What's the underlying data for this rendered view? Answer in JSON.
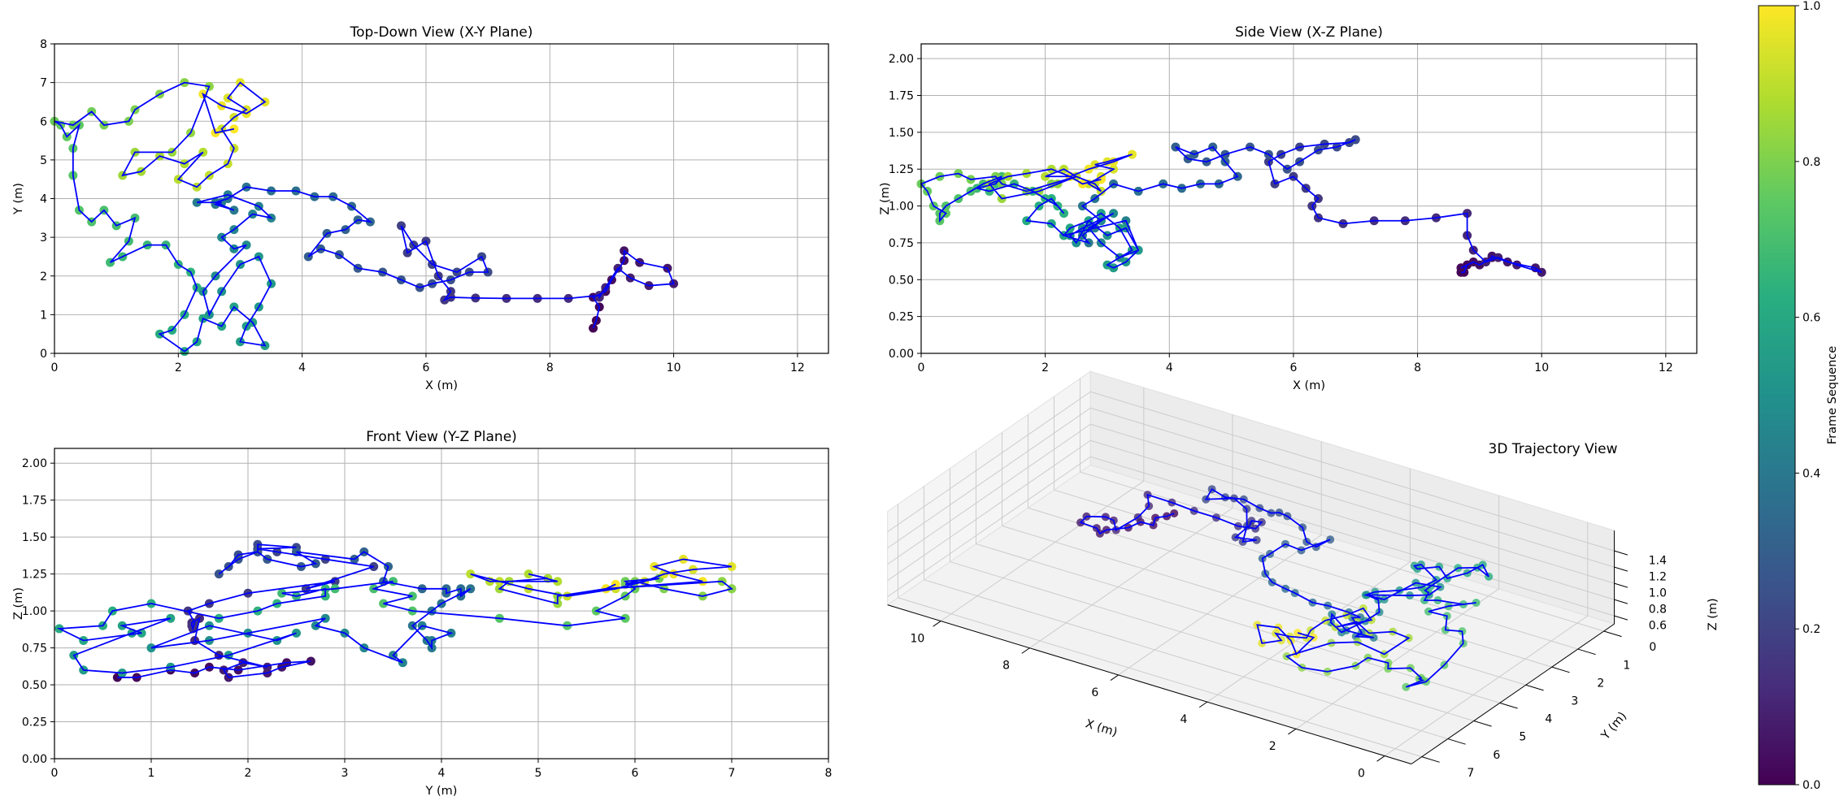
{
  "chart_data": {
    "type": "scatter",
    "trajectory_points_xyz": [
      [
        8.7,
        0.65,
        0.55
      ],
      [
        8.75,
        0.85,
        0.55
      ],
      [
        8.8,
        1.2,
        0.6
      ],
      [
        8.7,
        1.45,
        0.58
      ],
      [
        8.9,
        1.6,
        0.62
      ],
      [
        9.0,
        1.9,
        0.6
      ],
      [
        9.2,
        2.4,
        0.65
      ],
      [
        9.2,
        2.65,
        0.66
      ],
      [
        9.45,
        2.35,
        0.62
      ],
      [
        9.9,
        2.2,
        0.58
      ],
      [
        10.0,
        1.8,
        0.55
      ],
      [
        9.6,
        1.75,
        0.6
      ],
      [
        9.3,
        1.95,
        0.65
      ],
      [
        9.1,
        2.2,
        0.62
      ],
      [
        8.9,
        1.7,
        0.7
      ],
      [
        8.8,
        1.45,
        0.8
      ],
      [
        8.8,
        1.5,
        0.95
      ],
      [
        8.3,
        1.42,
        0.92
      ],
      [
        7.8,
        1.42,
        0.9
      ],
      [
        7.3,
        1.42,
        0.9
      ],
      [
        6.8,
        1.43,
        0.88
      ],
      [
        6.4,
        1.45,
        0.92
      ],
      [
        6.3,
        1.38,
        1.0
      ],
      [
        6.4,
        1.6,
        1.05
      ],
      [
        6.2,
        2.0,
        1.12
      ],
      [
        6.0,
        2.9,
        1.2
      ],
      [
        5.7,
        2.6,
        1.15
      ],
      [
        5.6,
        3.3,
        1.3
      ],
      [
        5.8,
        2.8,
        1.35
      ],
      [
        6.1,
        2.3,
        1.4
      ],
      [
        6.5,
        2.1,
        1.42
      ],
      [
        6.9,
        2.5,
        1.43
      ],
      [
        7.0,
        2.1,
        1.45
      ],
      [
        6.7,
        2.1,
        1.4
      ],
      [
        6.4,
        1.9,
        1.38
      ],
      [
        6.1,
        1.8,
        1.3
      ],
      [
        5.9,
        1.7,
        1.25
      ],
      [
        5.6,
        1.9,
        1.35
      ],
      [
        5.3,
        2.1,
        1.4
      ],
      [
        4.9,
        2.2,
        1.35
      ],
      [
        4.6,
        2.55,
        1.3
      ],
      [
        4.3,
        2.7,
        1.32
      ],
      [
        4.1,
        2.5,
        1.4
      ],
      [
        4.4,
        3.1,
        1.35
      ],
      [
        4.7,
        3.2,
        1.4
      ],
      [
        4.9,
        3.45,
        1.3
      ],
      [
        5.1,
        3.4,
        1.2
      ],
      [
        4.8,
        3.8,
        1.15
      ],
      [
        4.5,
        4.05,
        1.15
      ],
      [
        4.2,
        4.05,
        1.12
      ],
      [
        3.9,
        4.2,
        1.15
      ],
      [
        3.5,
        4.2,
        1.1
      ],
      [
        3.1,
        4.3,
        1.15
      ],
      [
        2.8,
        4.0,
        1.05
      ],
      [
        2.6,
        3.9,
        1.0
      ],
      [
        2.9,
        3.7,
        0.9
      ],
      [
        2.6,
        3.85,
        0.8
      ],
      [
        2.7,
        3.9,
        0.75
      ],
      [
        2.3,
        3.9,
        0.8
      ],
      [
        2.8,
        4.1,
        0.85
      ],
      [
        3.3,
        3.8,
        0.9
      ],
      [
        3.5,
        3.5,
        0.7
      ],
      [
        3.2,
        3.6,
        0.65
      ],
      [
        2.9,
        3.2,
        0.75
      ],
      [
        2.7,
        3.0,
        0.85
      ],
      [
        2.9,
        2.7,
        0.9
      ],
      [
        3.1,
        2.8,
        0.95
      ],
      [
        2.6,
        2.0,
        0.85
      ],
      [
        2.4,
        1.6,
        0.8
      ],
      [
        2.5,
        1.0,
        0.75
      ],
      [
        2.7,
        1.6,
        0.9
      ],
      [
        3.0,
        2.3,
        0.8
      ],
      [
        3.3,
        2.5,
        0.85
      ],
      [
        3.5,
        1.8,
        0.7
      ],
      [
        3.3,
        1.2,
        0.62
      ],
      [
        3.1,
        0.7,
        0.58
      ],
      [
        3.0,
        0.3,
        0.6
      ],
      [
        3.4,
        0.2,
        0.7
      ],
      [
        3.2,
        0.8,
        0.85
      ],
      [
        2.9,
        1.2,
        0.95
      ],
      [
        2.7,
        0.7,
        0.9
      ],
      [
        2.4,
        0.9,
        0.85
      ],
      [
        2.3,
        0.3,
        0.8
      ],
      [
        2.1,
        0.05,
        0.88
      ],
      [
        1.7,
        0.5,
        0.9
      ],
      [
        1.9,
        0.6,
        1.0
      ],
      [
        2.1,
        1.0,
        1.05
      ],
      [
        2.3,
        1.7,
        0.95
      ],
      [
        2.2,
        2.1,
        1.0
      ],
      [
        2.0,
        2.3,
        1.05
      ],
      [
        1.8,
        2.8,
        1.1
      ],
      [
        1.5,
        2.8,
        1.15
      ],
      [
        1.1,
        2.5,
        1.1
      ],
      [
        0.9,
        2.35,
        1.12
      ],
      [
        1.2,
        2.9,
        1.15
      ],
      [
        1.3,
        3.5,
        1.2
      ],
      [
        1.0,
        3.3,
        1.15
      ],
      [
        0.8,
        3.7,
        1.1
      ],
      [
        0.6,
        3.4,
        1.05
      ],
      [
        0.4,
        3.7,
        1.0
      ],
      [
        0.3,
        4.6,
        0.95
      ],
      [
        0.3,
        5.3,
        0.9
      ],
      [
        0.4,
        5.9,
        0.95
      ],
      [
        0.2,
        5.6,
        1.0
      ],
      [
        0.1,
        5.9,
        1.1
      ],
      [
        0.0,
        6.0,
        1.15
      ],
      [
        0.3,
        5.9,
        1.2
      ],
      [
        0.6,
        6.25,
        1.22
      ],
      [
        0.8,
        5.9,
        1.18
      ],
      [
        1.2,
        6.0,
        1.2
      ],
      [
        1.3,
        6.3,
        1.15
      ],
      [
        1.7,
        6.7,
        1.1
      ],
      [
        2.1,
        7.0,
        1.15
      ],
      [
        2.5,
        6.9,
        1.2
      ],
      [
        2.2,
        5.7,
        1.15
      ],
      [
        1.9,
        5.2,
        1.1
      ],
      [
        1.3,
        5.2,
        1.05
      ],
      [
        1.1,
        4.6,
        1.15
      ],
      [
        1.4,
        4.7,
        1.2
      ],
      [
        1.7,
        5.1,
        1.22
      ],
      [
        2.1,
        4.9,
        1.25
      ],
      [
        2.4,
        5.2,
        1.2
      ],
      [
        2.0,
        4.5,
        1.2
      ],
      [
        2.3,
        4.3,
        1.25
      ],
      [
        2.5,
        4.6,
        1.2
      ],
      [
        2.8,
        4.9,
        1.15
      ],
      [
        2.9,
        5.3,
        1.1
      ],
      [
        2.7,
        5.8,
        1.15
      ],
      [
        2.9,
        6.1,
        1.2
      ],
      [
        3.1,
        6.3,
        1.25
      ],
      [
        2.8,
        6.6,
        1.28
      ],
      [
        3.0,
        7.0,
        1.3
      ],
      [
        3.4,
        6.5,
        1.35
      ],
      [
        3.1,
        6.2,
        1.3
      ],
      [
        2.7,
        6.4,
        1.25
      ],
      [
        2.4,
        6.7,
        1.2
      ],
      [
        2.6,
        5.7,
        1.15
      ],
      [
        2.9,
        5.8,
        1.18
      ]
    ],
    "line_color": "#0000ff",
    "colormap": "viridis",
    "panels": [
      {
        "type": "scatter",
        "title": "Top-Down View (X-Y Plane)",
        "xlabel": "X (m)",
        "ylabel": "Y (m)",
        "x_key": 0,
        "y_key": 1,
        "xlim": [
          0,
          12.5
        ],
        "ylim": [
          0,
          8
        ],
        "xticks": [
          "0",
          "2",
          "4",
          "6",
          "8",
          "10",
          "12"
        ],
        "yticks": [
          "0",
          "1",
          "2",
          "3",
          "4",
          "5",
          "6",
          "7",
          "8"
        ],
        "grid": true
      },
      {
        "type": "scatter",
        "title": "Side View (X-Z Plane)",
        "xlabel": "X (m)",
        "ylabel": "Z (m)",
        "x_key": 0,
        "y_key": 2,
        "xlim": [
          0,
          12.5
        ],
        "ylim": [
          0,
          2.1
        ],
        "xticks": [
          "0",
          "2",
          "4",
          "6",
          "8",
          "10",
          "12"
        ],
        "yticks": [
          "0.00",
          "0.25",
          "0.50",
          "0.75",
          "1.00",
          "1.25",
          "1.50",
          "1.75",
          "2.00"
        ],
        "grid": true
      },
      {
        "type": "scatter",
        "title": "Front View (Y-Z Plane)",
        "xlabel": "Y (m)",
        "ylabel": "Z (m)",
        "x_key": 1,
        "y_key": 2,
        "xlim": [
          0,
          8
        ],
        "ylim": [
          0,
          2.1
        ],
        "xticks": [
          "0",
          "1",
          "2",
          "3",
          "4",
          "5",
          "6",
          "7",
          "8"
        ],
        "yticks": [
          "0.00",
          "0.25",
          "0.50",
          "0.75",
          "1.00",
          "1.25",
          "1.50",
          "1.75",
          "2.00"
        ],
        "grid": true
      },
      {
        "type": "scatter3d",
        "title": "3D Trajectory View",
        "xlabel": "X (m)",
        "ylabel": "Y (m)",
        "zlabel": "Z (m)",
        "xticks": [
          "0",
          "2",
          "4",
          "6",
          "8",
          "10"
        ],
        "yticks": [
          "0",
          "1",
          "2",
          "3",
          "4",
          "5",
          "6",
          "7"
        ],
        "zticks": [
          "0.6",
          "0.8",
          "1.0",
          "1.2",
          "1.4"
        ],
        "grid": true
      }
    ],
    "colorbar": {
      "label": "Frame Sequence",
      "range": [
        0,
        1
      ],
      "ticks": [
        "0.0",
        "0.2",
        "0.4",
        "0.6",
        "0.8",
        "1.0"
      ]
    }
  }
}
